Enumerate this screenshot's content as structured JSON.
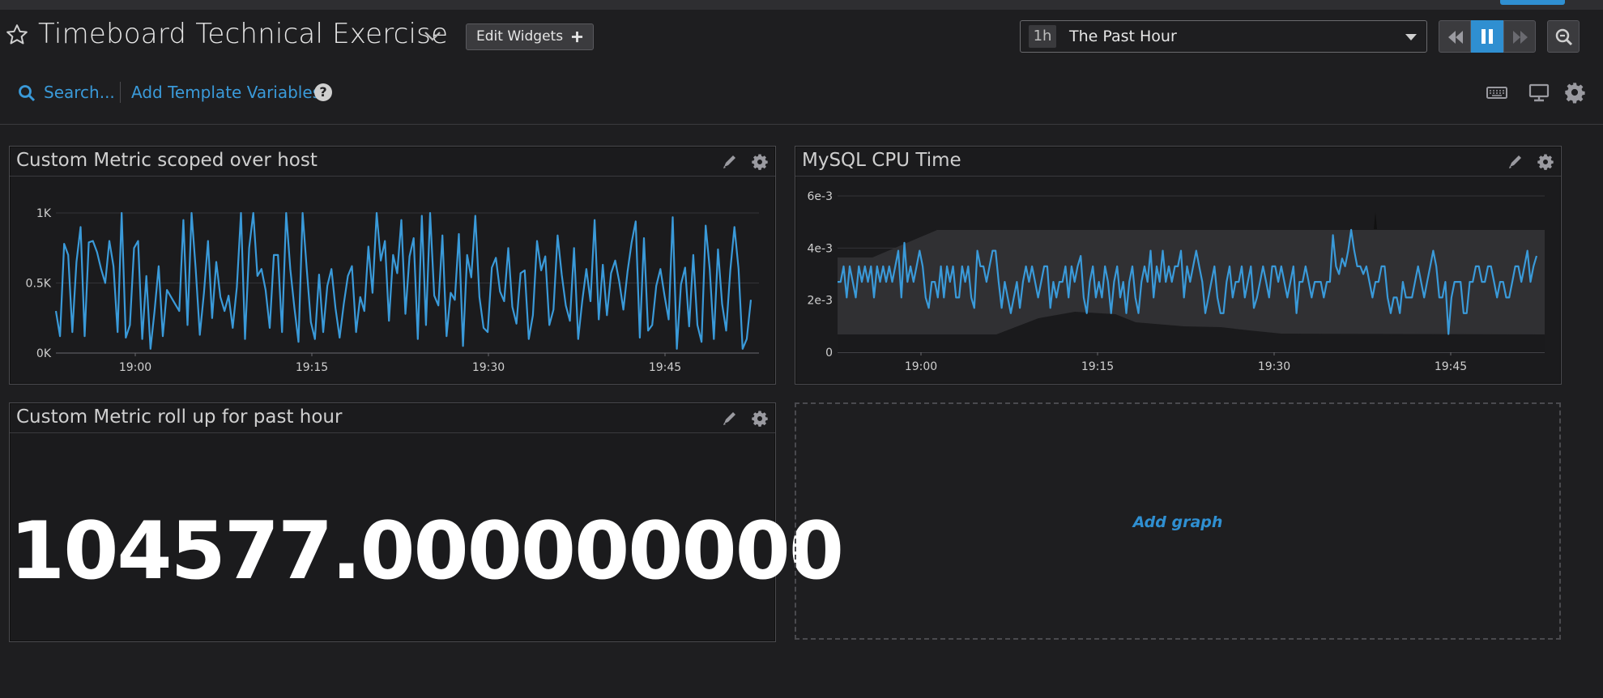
{
  "header": {
    "title": "Timeboard Technical Exercise",
    "edit_widgets_label": "Edit Widgets",
    "time_badge": "1h",
    "time_label": "The Past Hour"
  },
  "toolbar": {
    "search_label": "Search...",
    "add_template_label": "Add Template Variables",
    "help_glyph": "?"
  },
  "widgets": [
    {
      "title": "Custom Metric scoped over host",
      "chart_data": {
        "type": "line",
        "y_ticks": [
          "0K",
          "0.5K",
          "1K"
        ],
        "ylim": [
          0,
          1000
        ],
        "x_ticks": [
          "19:00",
          "19:15",
          "19:30",
          "19:45"
        ],
        "series": [
          {
            "color": "#3a9ad9",
            "values": [
              300,
              120,
              780,
              700,
              150,
              650,
              900,
              120,
              790,
              800,
              720,
              600,
              500,
              800,
              620,
              150,
              1000,
              110,
              200,
              750,
              800,
              100,
              550,
              30,
              300,
              620,
              120,
              450,
              400,
              350,
              300,
              950,
              200,
              1000,
              600,
              130,
              430,
              800,
              250,
              650,
              400,
              300,
              410,
              180,
              470,
              1000,
              100,
              750,
              1000,
              550,
              600,
              450,
              180,
              700,
              700,
              150,
              1000,
              600,
              320,
              80,
              1000,
              600,
              220,
              100,
              560,
              150,
              480,
              600,
              320,
              110,
              350,
              550,
              620,
              150,
              400,
              300,
              760,
              430,
              1000,
              660,
              800,
              230,
              700,
              570,
              950,
              280,
              690,
              820,
              100,
              980,
              200,
              1000,
              410,
              340,
              840,
              120,
              430,
              380,
              850,
              50,
              700,
              540,
              980,
              400,
              180,
              150,
              610,
              680,
              440,
              370,
              750,
              330,
              210,
              570,
              590,
              100,
              270,
              800,
              590,
              690,
              200,
              310,
              840,
              560,
              340,
              230,
              750,
              100,
              370,
              600,
              370,
              950,
              240,
              630,
              270,
              570,
              660,
              510,
              310,
              580,
              790,
              940,
              110,
              820,
              160,
              200,
              480,
              600,
              410,
              240,
              970,
              30,
              490,
              610,
              190,
              700,
              200,
              80,
              910,
              600,
              100,
              740,
              350,
              160,
              590,
              900,
              600,
              30,
              100,
              380
            ]
          }
        ]
      }
    },
    {
      "title": "MySQL CPU Time",
      "chart_data": {
        "type": "line",
        "y_ticks": [
          "0",
          "2e-3",
          "4e-3",
          "6e-3"
        ],
        "ylim": [
          0,
          0.006
        ],
        "x_ticks": [
          "19:00",
          "19:15",
          "19:30",
          "19:45"
        ],
        "series": [
          {
            "color": "#3a9ad9",
            "values": [
              0.0027,
              0.0027,
              0.0033,
              0.0021,
              0.0033,
              0.0027,
              0.0021,
              0.0033,
              0.0027,
              0.0033,
              0.0027,
              0.0033,
              0.0021,
              0.0033,
              0.0027,
              0.0033,
              0.0027,
              0.0033,
              0.0027,
              0.0033,
              0.0039,
              0.0021,
              0.0042,
              0.0027,
              0.0033,
              0.0027,
              0.0033,
              0.0039,
              0.0033,
              0.0021,
              0.0017,
              0.0027,
              0.0027,
              0.0021,
              0.0033,
              0.0021,
              0.0033,
              0.0027,
              0.0033,
              0.0021,
              0.0021,
              0.0033,
              0.0027,
              0.0033,
              0.0021,
              0.0017,
              0.0039,
              0.0033,
              0.0033,
              0.0027,
              0.0033,
              0.0039,
              0.0039,
              0.0027,
              0.0017,
              0.0027,
              0.0021,
              0.0015,
              0.0021,
              0.0027,
              0.0017,
              0.0027,
              0.0033,
              0.0027,
              0.0033,
              0.0027,
              0.0021,
              0.0027,
              0.0033,
              0.0033,
              0.0017,
              0.0027,
              0.0021,
              0.0027,
              0.0027,
              0.0033,
              0.0021,
              0.0033,
              0.0027,
              0.0033,
              0.0037,
              0.0021,
              0.0015,
              0.0027,
              0.0033,
              0.0021,
              0.0027,
              0.0021,
              0.0033,
              0.0027,
              0.0015,
              0.0027,
              0.0033,
              0.0021,
              0.0027,
              0.0015,
              0.0027,
              0.0033,
              0.0021,
              0.0015,
              0.0027,
              0.0033,
              0.0027,
              0.0039,
              0.0021,
              0.0033,
              0.0027,
              0.0039,
              0.0027,
              0.0033,
              0.0027,
              0.0033,
              0.0033,
              0.0039,
              0.0021,
              0.0033,
              0.0027,
              0.0033,
              0.0039,
              0.0033,
              0.0027,
              0.0015,
              0.0021,
              0.0027,
              0.0033,
              0.0021,
              0.0015,
              0.0015,
              0.0027,
              0.0033,
              0.0021,
              0.0027,
              0.0027,
              0.0033,
              0.0021,
              0.0027,
              0.0033,
              0.0017,
              0.0021,
              0.0027,
              0.0033,
              0.0027,
              0.0021,
              0.0033,
              0.0033,
              0.0027,
              0.0033,
              0.0027,
              0.0021,
              0.0027,
              0.0033,
              0.0015,
              0.0027,
              0.0027,
              0.0033,
              0.0027,
              0.0021,
              0.0027,
              0.0027,
              0.0027,
              0.0021,
              0.0027,
              0.0027,
              0.0045,
              0.0033,
              0.003,
              0.0036,
              0.0033,
              0.0039,
              0.0047,
              0.0039,
              0.0033,
              0.0033,
              0.003,
              0.0033,
              0.0027,
              0.0021,
              0.0027,
              0.0027,
              0.0033,
              0.0033,
              0.0021,
              0.0015,
              0.0021,
              0.0021,
              0.0015,
              0.0027,
              0.0021,
              0.0021,
              0.0021,
              0.0027,
              0.0033,
              0.0027,
              0.0021,
              0.0027,
              0.0033,
              0.0039,
              0.0033,
              0.0021,
              0.0021,
              0.0027,
              0.0007,
              0.0021,
              0.0027,
              0.0027,
              0.0027,
              0.0015,
              0.0015,
              0.0027,
              0.0027,
              0.0033,
              0.0033,
              0.0027,
              0.0027,
              0.0033,
              0.0033,
              0.0027,
              0.0021,
              0.0027,
              0.0027,
              0.0021,
              0.0021,
              0.0027,
              0.0033,
              0.0033,
              0.0027,
              0.0033,
              0.0039,
              0.0027,
              0.0033,
              0.0037
            ]
          }
        ]
      }
    },
    {
      "title": "Custom Metric roll up for past hour",
      "value": "104577.000000000"
    }
  ],
  "add_graph_label": "Add graph",
  "colors": {
    "accent": "#2f8fd1",
    "line": "#3a9ad9",
    "background": "#1e1e20"
  },
  "icons": [
    "star-icon",
    "chevron-down-icon",
    "plus-icon",
    "rewind-icon",
    "pause-icon",
    "fast-forward-icon",
    "zoom-icon",
    "search-icon",
    "help-icon",
    "keyboard-icon",
    "monitor-icon",
    "gear-icon",
    "pencil-icon"
  ]
}
